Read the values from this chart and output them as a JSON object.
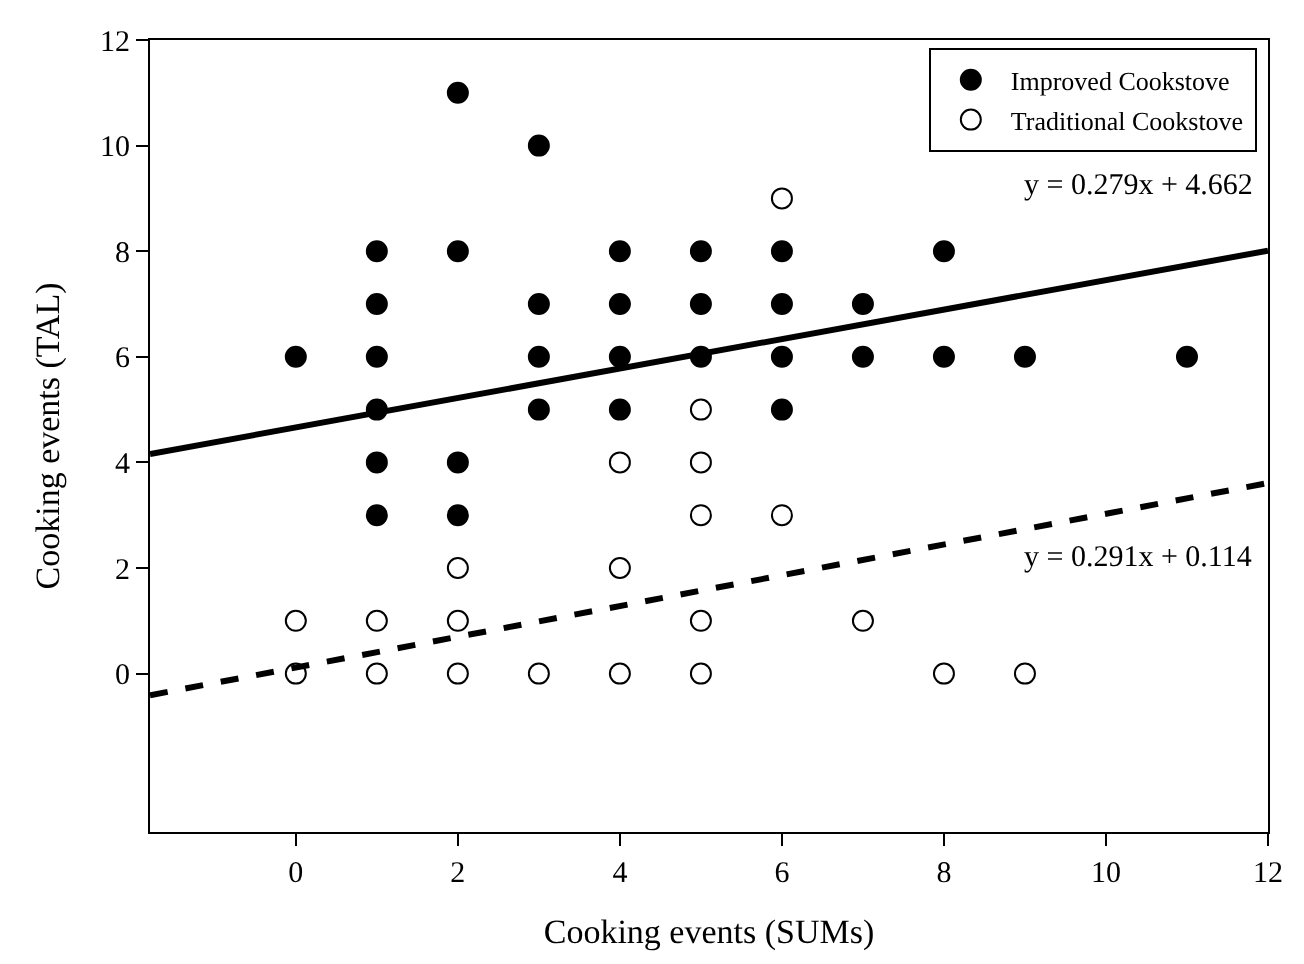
{
  "chart_data": {
    "type": "scatter",
    "xlabel": "Cooking events (SUMs)",
    "ylabel": "Cooking events (TAL)",
    "xlim": [
      -1.8,
      12
    ],
    "ylim": [
      -3,
      12
    ],
    "xticks": [
      0,
      2,
      4,
      6,
      8,
      10,
      12
    ],
    "yticks": [
      0,
      2,
      4,
      6,
      8,
      10,
      12
    ],
    "legend": "top right",
    "marker": "circle",
    "series": [
      {
        "name": "Improved Cookstove",
        "color": "#000000",
        "x": [
          0,
          1,
          1,
          1,
          1,
          1,
          1,
          2,
          2,
          2,
          2,
          3,
          3,
          3,
          3,
          4,
          4,
          4,
          4,
          5,
          5,
          5,
          6,
          6,
          6,
          6,
          7,
          7,
          8,
          8,
          9,
          11
        ],
        "values": [
          6,
          8,
          7,
          6,
          5,
          4,
          3,
          11,
          8,
          4,
          3,
          10,
          7,
          6,
          5,
          8,
          7,
          6,
          5,
          8,
          7,
          6,
          8,
          7,
          6,
          5,
          7,
          6,
          8,
          6,
          6,
          6
        ]
      },
      {
        "name": "Traditional Cookstove",
        "color": "#ffffff",
        "x": [
          0,
          0,
          1,
          1,
          2,
          2,
          2,
          3,
          4,
          4,
          4,
          5,
          5,
          5,
          5,
          5,
          6,
          6,
          7,
          8,
          9
        ],
        "values": [
          1,
          0,
          1,
          0,
          2,
          1,
          0,
          0,
          4,
          2,
          0,
          5,
          4,
          3,
          1,
          0,
          9,
          3,
          1,
          0,
          0
        ]
      },
      {
        "type": "line",
        "marker": "none",
        "line_style": "solid",
        "color": "#000000",
        "x": [
          -1.8,
          12
        ],
        "values": [
          4.16,
          8.01
        ]
      },
      {
        "type": "line",
        "marker": "none",
        "line_style": "dashed",
        "color": "#000000",
        "x": [
          -1.8,
          12
        ],
        "values": [
          -0.41,
          3.61
        ]
      }
    ],
    "annotations": [
      "y = 0.279x + 4.662",
      "y = 0.291x + 0.114"
    ]
  }
}
